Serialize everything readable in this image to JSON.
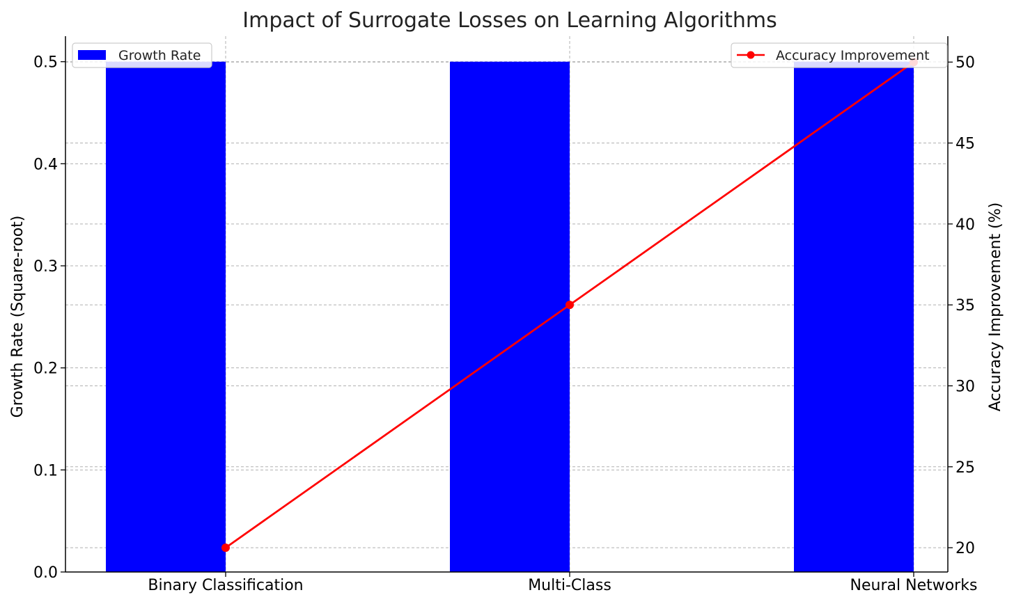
{
  "chart_data": {
    "type": "bar+line",
    "title": "Impact of Surrogate Losses on Learning Algorithms",
    "categories": [
      "Binary Classification",
      "Multi-Class",
      "Neural Networks"
    ],
    "bar_series": {
      "name": "Growth Rate",
      "values": [
        0.5,
        0.5,
        0.5
      ],
      "color": "#0000ff"
    },
    "line_series": {
      "name": "Accuracy Improvement",
      "values": [
        20,
        35,
        50
      ],
      "color": "#ff0000"
    },
    "ylabel_left": "Growth Rate (Square-root)",
    "ylabel_right": "Accuracy Improvement (%)",
    "ylim_left": [
      0,
      0.525
    ],
    "ylim_right": [
      18.5,
      51.6
    ],
    "yticks_left": [
      "0.0",
      "0.1",
      "0.2",
      "0.3",
      "0.4",
      "0.5"
    ],
    "yticks_right": [
      "20",
      "25",
      "30",
      "35",
      "40",
      "45",
      "50"
    ],
    "grid": true,
    "bar_legend_position": "top-left",
    "line_legend_position": "top-right"
  }
}
